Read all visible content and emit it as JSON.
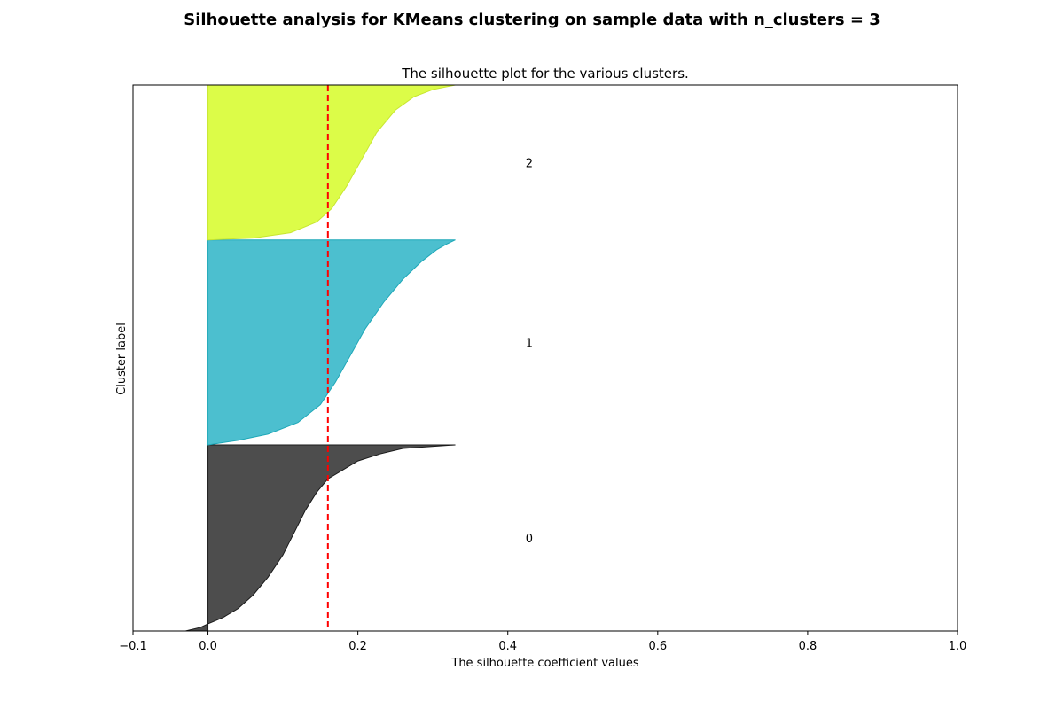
{
  "figure": {
    "title": "Silhouette analysis for KMeans clustering on sample data with n_clusters = 3"
  },
  "chart_data": {
    "type": "area",
    "title": "The silhouette plot for the various clusters.",
    "xlabel": "The silhouette coefficient values",
    "ylabel": "Cluster label",
    "xlim": [
      -0.1,
      1.0
    ],
    "ylim": [
      0,
      610
    ],
    "xticks": [
      {
        "value": -0.1,
        "label": "−0.1"
      },
      {
        "value": 0.0,
        "label": "0.0"
      },
      {
        "value": 0.2,
        "label": "0.2"
      },
      {
        "value": 0.4,
        "label": "0.4"
      },
      {
        "value": 0.6,
        "label": "0.6"
      },
      {
        "value": 0.8,
        "label": "0.8"
      },
      {
        "value": 1.0,
        "label": "1.0"
      }
    ],
    "grid": false,
    "average_silhouette": 0.16,
    "average_line_color": "#ff0000",
    "clusters": [
      {
        "label": "0",
        "y_lower": 0,
        "y_upper": 208,
        "color": "#4d4d4d",
        "edge": "#1a1a1a",
        "profile": [
          [
            0,
            -0.03
          ],
          [
            4,
            -0.01
          ],
          [
            8,
            0.0
          ],
          [
            15,
            0.02
          ],
          [
            25,
            0.04
          ],
          [
            40,
            0.06
          ],
          [
            60,
            0.08
          ],
          [
            85,
            0.1
          ],
          [
            110,
            0.115
          ],
          [
            135,
            0.13
          ],
          [
            155,
            0.145
          ],
          [
            170,
            0.16
          ],
          [
            180,
            0.18
          ],
          [
            190,
            0.2
          ],
          [
            198,
            0.23
          ],
          [
            204,
            0.26
          ],
          [
            208,
            0.33
          ]
        ]
      },
      {
        "label": "1",
        "y_lower": 208,
        "y_upper": 437,
        "color": "#4cbfcf",
        "edge": "#1fa8b8",
        "profile": [
          [
            0,
            0.0
          ],
          [
            5,
            0.04
          ],
          [
            12,
            0.08
          ],
          [
            25,
            0.12
          ],
          [
            45,
            0.15
          ],
          [
            70,
            0.17
          ],
          [
            100,
            0.19
          ],
          [
            130,
            0.21
          ],
          [
            160,
            0.235
          ],
          [
            185,
            0.26
          ],
          [
            205,
            0.285
          ],
          [
            218,
            0.305
          ],
          [
            225,
            0.32
          ],
          [
            229,
            0.33
          ]
        ]
      },
      {
        "label": "2",
        "y_lower": 437,
        "y_upper": 610,
        "color": "#dcfc48",
        "edge": "#c8e630",
        "profile": [
          [
            0,
            0.0
          ],
          [
            2,
            0.06
          ],
          [
            8,
            0.11
          ],
          [
            20,
            0.145
          ],
          [
            35,
            0.165
          ],
          [
            60,
            0.185
          ],
          [
            90,
            0.205
          ],
          [
            120,
            0.225
          ],
          [
            145,
            0.25
          ],
          [
            160,
            0.275
          ],
          [
            168,
            0.3
          ],
          [
            173,
            0.33
          ],
          [
            173,
            0.36
          ]
        ]
      }
    ]
  }
}
